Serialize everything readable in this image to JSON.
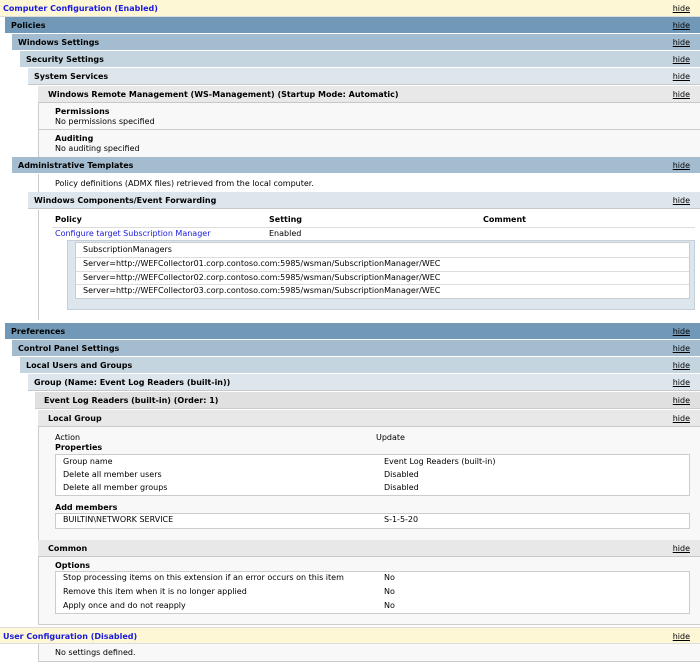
{
  "hide_label": "hide",
  "computer": {
    "title": "Computer Configuration (Enabled)"
  },
  "policies": {
    "title": "Policies",
    "windows_settings": "Windows Settings",
    "security_settings": "Security Settings",
    "system_services": "System Services",
    "service": "Windows Remote Management (WS-Management) (Startup Mode: Automatic)",
    "permissions_label": "Permissions",
    "permissions_value": "No permissions specified",
    "auditing_label": "Auditing",
    "auditing_value": "No auditing specified",
    "admin_templates": "Administrative Templates",
    "admx_note": "Policy definitions (ADMX files) retrieved from the local computer.",
    "event_forwarding": "Windows Components/Event Forwarding",
    "columns": [
      "Policy",
      "Setting",
      "Comment"
    ],
    "policy_name": "Configure target Subscription Manager",
    "policy_setting": "Enabled",
    "sub_header": "SubscriptionManagers",
    "servers": [
      "Server=http://WEFCollector01.corp.contoso.com:5985/wsman/SubscriptionManager/WEC",
      "Server=http://WEFCollector02.corp.contoso.com:5985/wsman/SubscriptionManager/WEC",
      "Server=http://WEFCollector03.corp.contoso.com:5985/wsman/SubscriptionManager/WEC"
    ]
  },
  "preferences": {
    "title": "Preferences",
    "control_panel": "Control Panel Settings",
    "local_users": "Local Users and Groups",
    "group": "Group (Name: Event Log Readers (built-in))",
    "item": "Event Log Readers (built-in) (Order: 1)",
    "local_group": "Local Group",
    "action_label": "Action",
    "action_value": "Update",
    "properties_label": "Properties",
    "properties": [
      {
        "k": "Group name",
        "v": "Event Log Readers (built-in)"
      },
      {
        "k": "Delete all member users",
        "v": "Disabled"
      },
      {
        "k": "Delete all member groups",
        "v": "Disabled"
      }
    ],
    "add_members_label": "Add members",
    "member_name": "BUILTIN\\NETWORK SERVICE",
    "member_sid": "S-1-5-20",
    "common": "Common",
    "options_label": "Options",
    "options": [
      {
        "k": "Stop processing items on this extension if an error occurs on this item",
        "v": "No"
      },
      {
        "k": "Remove this item when it is no longer applied",
        "v": "No"
      },
      {
        "k": "Apply once and do not reapply",
        "v": "No"
      }
    ]
  },
  "user": {
    "title": "User Configuration (Disabled)",
    "note": "No settings defined."
  }
}
